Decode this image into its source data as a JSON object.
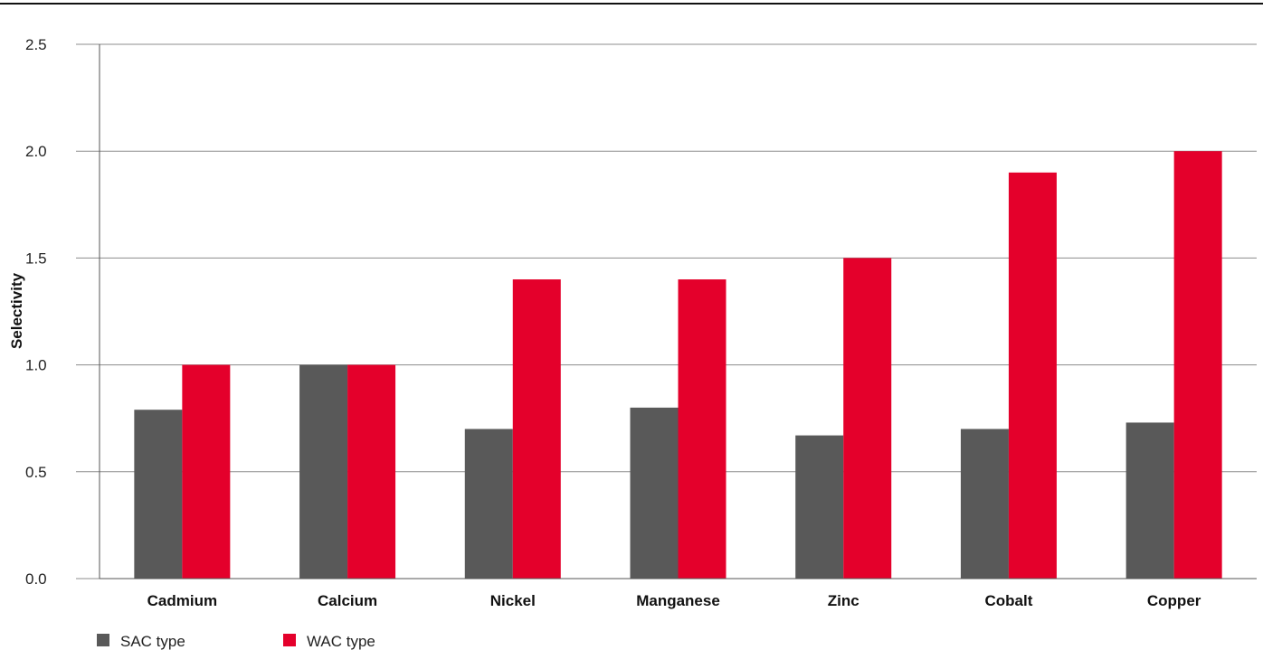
{
  "chart_data": {
    "type": "bar",
    "categories": [
      "Cadmium",
      "Calcium",
      "Nickel",
      "Manganese",
      "Zinc",
      "Cobalt",
      "Copper"
    ],
    "series": [
      {
        "name": "SAC type",
        "values": [
          0.79,
          1.0,
          0.7,
          0.8,
          0.67,
          0.7,
          0.73
        ],
        "color": "#595959"
      },
      {
        "name": "WAC type",
        "values": [
          1.0,
          1.0,
          1.4,
          1.4,
          1.5,
          1.9,
          2.0
        ],
        "color": "#e4002b"
      }
    ],
    "ylabel": "Selectivity",
    "ylim": [
      0,
      2.5
    ],
    "yticks": [
      "0.0",
      "0.5",
      "1.0",
      "1.5",
      "2.0",
      "2.5"
    ],
    "grid": true,
    "legend": "bottom-left"
  }
}
